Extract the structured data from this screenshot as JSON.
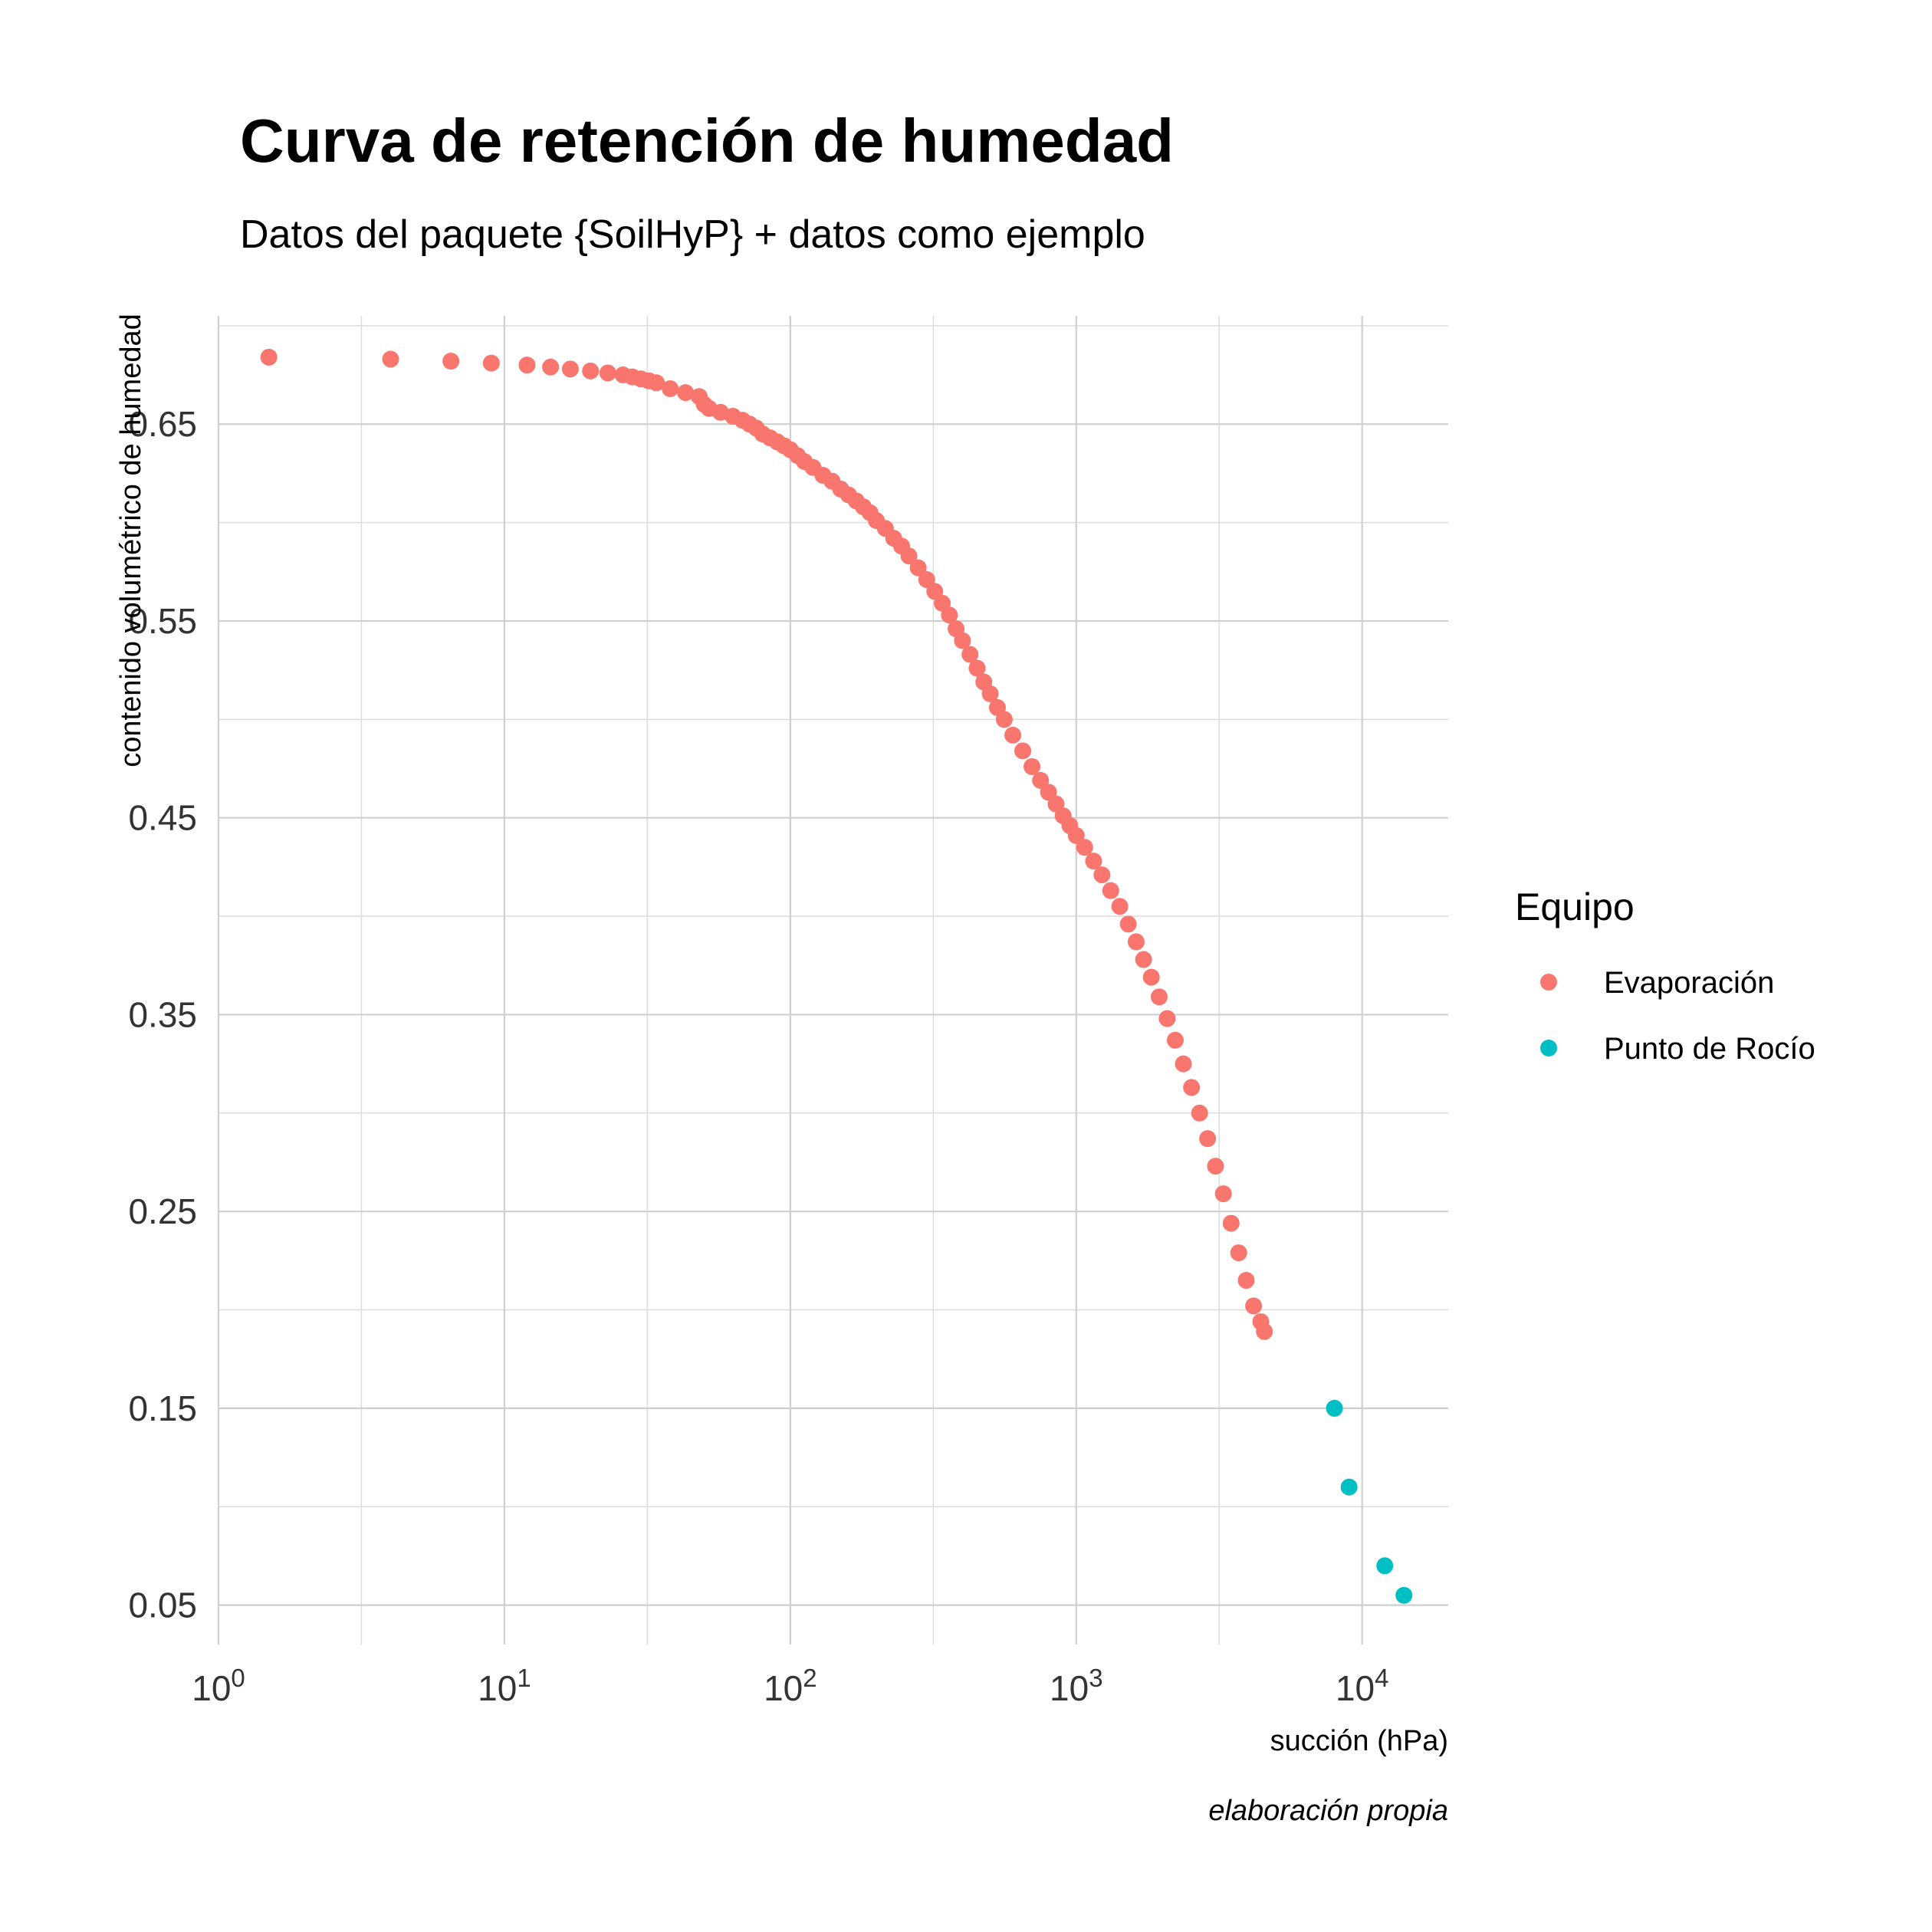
{
  "chart_data": {
    "type": "scatter",
    "title": "Curva de retención de humedad",
    "subtitle": "Datos del paquete {SoilHyP} + datos como ejemplo",
    "xlabel": "succión (hPa)",
    "ylabel": "contenido volumétrico de humedad",
    "caption": "elaboración propia",
    "x_scale": "log10",
    "xlim": [
      1,
      20000
    ],
    "ylim": [
      0.03,
      0.705
    ],
    "x_ticks": [
      {
        "value": 1,
        "base": "10",
        "exp": "0"
      },
      {
        "value": 10,
        "base": "10",
        "exp": "1"
      },
      {
        "value": 100,
        "base": "10",
        "exp": "2"
      },
      {
        "value": 1000,
        "base": "10",
        "exp": "3"
      },
      {
        "value": 10000,
        "base": "10",
        "exp": "4"
      }
    ],
    "y_ticks": [
      {
        "value": 0.05,
        "label": "0.05"
      },
      {
        "value": 0.15,
        "label": "0.15"
      },
      {
        "value": 0.25,
        "label": "0.25"
      },
      {
        "value": 0.35,
        "label": "0.35"
      },
      {
        "value": 0.45,
        "label": "0.45"
      },
      {
        "value": 0.55,
        "label": "0.55"
      },
      {
        "value": 0.65,
        "label": "0.65"
      }
    ],
    "x_minor_ticks": [
      3.162,
      31.62,
      316.2,
      3162
    ],
    "y_minor_ticks": [
      0.1,
      0.2,
      0.3,
      0.4,
      0.5,
      0.6,
      0.7
    ],
    "grid": true,
    "legend": {
      "title": "Equipo",
      "position": "right"
    },
    "series": [
      {
        "name": "Evaporación",
        "color": "#F8766D",
        "points": [
          [
            1.5,
            0.684
          ],
          [
            4.0,
            0.683
          ],
          [
            6.5,
            0.682
          ],
          [
            9.0,
            0.681
          ],
          [
            12.0,
            0.68
          ],
          [
            14.5,
            0.679
          ],
          [
            17.0,
            0.678
          ],
          [
            20.0,
            0.677
          ],
          [
            23.0,
            0.676
          ],
          [
            26.0,
            0.675
          ],
          [
            28.0,
            0.674
          ],
          [
            30.0,
            0.673
          ],
          [
            32.0,
            0.672
          ],
          [
            34.0,
            0.671
          ],
          [
            38.0,
            0.668
          ],
          [
            43.0,
            0.666
          ],
          [
            48.0,
            0.664
          ],
          [
            50.0,
            0.66
          ],
          [
            52.0,
            0.658
          ],
          [
            57.0,
            0.656
          ],
          [
            63.0,
            0.654
          ],
          [
            68.0,
            0.652
          ],
          [
            72.0,
            0.65
          ],
          [
            76.0,
            0.648
          ],
          [
            80.0,
            0.645
          ],
          [
            85.0,
            0.643
          ],
          [
            90.0,
            0.641
          ],
          [
            95.0,
            0.639
          ],
          [
            100.0,
            0.637
          ],
          [
            106.0,
            0.634
          ],
          [
            112.0,
            0.631
          ],
          [
            120.0,
            0.628
          ],
          [
            130.0,
            0.624
          ],
          [
            140.0,
            0.621
          ],
          [
            150.0,
            0.617
          ],
          [
            160.0,
            0.614
          ],
          [
            170.0,
            0.611
          ],
          [
            180.0,
            0.608
          ],
          [
            190.0,
            0.605
          ],
          [
            200.0,
            0.601
          ],
          [
            215.0,
            0.597
          ],
          [
            230.0,
            0.592
          ],
          [
            245.0,
            0.588
          ],
          [
            260.0,
            0.583
          ],
          [
            280.0,
            0.577
          ],
          [
            300.0,
            0.571
          ],
          [
            320.0,
            0.565
          ],
          [
            340.0,
            0.559
          ],
          [
            360.0,
            0.553
          ],
          [
            380.0,
            0.546
          ],
          [
            400.0,
            0.54
          ],
          [
            425.0,
            0.533
          ],
          [
            450.0,
            0.526
          ],
          [
            475.0,
            0.519
          ],
          [
            500.0,
            0.513
          ],
          [
            530.0,
            0.506
          ],
          [
            560.0,
            0.5
          ],
          [
            600.0,
            0.492
          ],
          [
            650.0,
            0.484
          ],
          [
            700.0,
            0.476
          ],
          [
            750.0,
            0.469
          ],
          [
            800.0,
            0.463
          ],
          [
            850.0,
            0.457
          ],
          [
            900.0,
            0.451
          ],
          [
            950.0,
            0.446
          ],
          [
            1000.0,
            0.441
          ],
          [
            1070.0,
            0.435
          ],
          [
            1150.0,
            0.428
          ],
          [
            1230.0,
            0.421
          ],
          [
            1320.0,
            0.413
          ],
          [
            1420.0,
            0.405
          ],
          [
            1520.0,
            0.396
          ],
          [
            1620.0,
            0.387
          ],
          [
            1720.0,
            0.378
          ],
          [
            1830.0,
            0.369
          ],
          [
            1950.0,
            0.359
          ],
          [
            2080.0,
            0.348
          ],
          [
            2220.0,
            0.337
          ],
          [
            2370.0,
            0.325
          ],
          [
            2530.0,
            0.313
          ],
          [
            2700.0,
            0.3
          ],
          [
            2880.0,
            0.287
          ],
          [
            3070.0,
            0.273
          ],
          [
            3270.0,
            0.259
          ],
          [
            3480.0,
            0.244
          ],
          [
            3700.0,
            0.229
          ],
          [
            3930.0,
            0.215
          ],
          [
            4170.0,
            0.202
          ],
          [
            4420.0,
            0.194
          ],
          [
            4550.0,
            0.189
          ]
        ]
      },
      {
        "name": "Punto de Rocío",
        "color": "#00BFC4",
        "points": [
          [
            8000,
            0.15
          ],
          [
            9000,
            0.11
          ],
          [
            12000,
            0.07
          ],
          [
            14000,
            0.055
          ]
        ]
      }
    ]
  }
}
